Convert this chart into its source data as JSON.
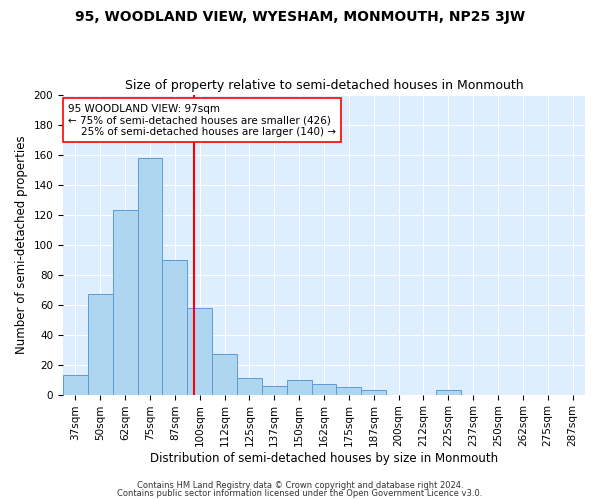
{
  "title": "95, WOODLAND VIEW, WYESHAM, MONMOUTH, NP25 3JW",
  "subtitle": "Size of property relative to semi-detached houses in Monmouth",
  "xlabel": "Distribution of semi-detached houses by size in Monmouth",
  "ylabel": "Number of semi-detached properties",
  "footnote1": "Contains HM Land Registry data © Crown copyright and database right 2024.",
  "footnote2": "Contains public sector information licensed under the Open Government Licence v3.0.",
  "bar_labels": [
    "37sqm",
    "50sqm",
    "62sqm",
    "75sqm",
    "87sqm",
    "100sqm",
    "112sqm",
    "125sqm",
    "137sqm",
    "150sqm",
    "162sqm",
    "175sqm",
    "187sqm",
    "200sqm",
    "212sqm",
    "225sqm",
    "237sqm",
    "250sqm",
    "262sqm",
    "275sqm",
    "287sqm"
  ],
  "bar_values": [
    13,
    67,
    123,
    158,
    90,
    58,
    27,
    11,
    6,
    10,
    7,
    5,
    3,
    0,
    0,
    3,
    0,
    0,
    0,
    0,
    0
  ],
  "bar_color": "#AED6F1",
  "bar_edge_color": "#5B9BD5",
  "bar_width": 1.0,
  "property_label": "95 WOODLAND VIEW: 97sqm",
  "pct_smaller": 75,
  "n_smaller": 426,
  "pct_larger": 25,
  "n_larger": 140,
  "vline_color": "red",
  "vline_x": 4.77,
  "ylim": [
    0,
    200
  ],
  "yticks": [
    0,
    20,
    40,
    60,
    80,
    100,
    120,
    140,
    160,
    180,
    200
  ],
  "bg_color": "#DDEEFF",
  "grid_color": "white",
  "title_fontsize": 10,
  "subtitle_fontsize": 9,
  "axis_label_fontsize": 8.5,
  "tick_fontsize": 7.5,
  "annotation_fontsize": 7.5,
  "footnote_fontsize": 6
}
